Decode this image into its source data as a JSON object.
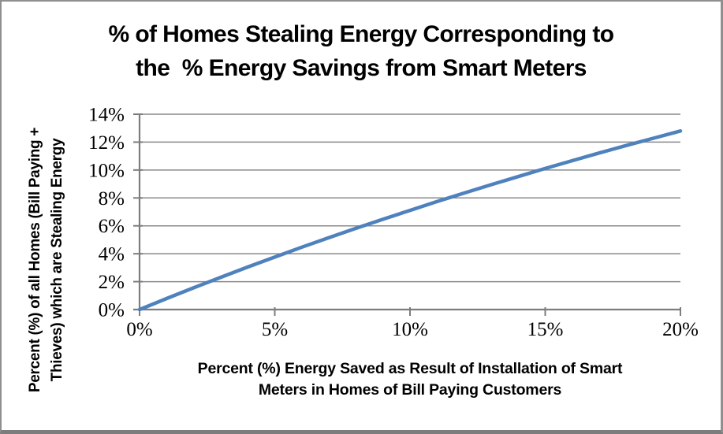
{
  "chart_data": {
    "type": "line",
    "title_line1": "% of Homes Stealing Energy Corresponding to",
    "title_line2": "the  % Energy Savings from Smart Meters",
    "xlabel_line1": "Percent (%) Energy Saved as Result of Installation of Smart",
    "xlabel_line2": "Meters in Homes of Bill Paying Customers",
    "ylabel_line1": "Percent (%) of all Homes (Bill Paying +",
    "ylabel_line2": "Thieves) which are Stealing Energy",
    "x": [
      0,
      1,
      2,
      3,
      4,
      5,
      6,
      7,
      8,
      9,
      10,
      11,
      12,
      13,
      14,
      15,
      16,
      17,
      18,
      19,
      20
    ],
    "y": [
      0,
      0.79,
      1.56,
      2.31,
      3.05,
      3.76,
      4.47,
      5.15,
      5.82,
      6.47,
      7.11,
      7.74,
      8.35,
      8.95,
      9.53,
      10.11,
      10.67,
      11.22,
      11.76,
      12.28,
      12.8
    ],
    "xlim": [
      0,
      20
    ],
    "ylim": [
      0,
      14
    ],
    "xticks": [
      0,
      5,
      10,
      15,
      20
    ],
    "xtick_labels": [
      "0%",
      "5%",
      "10%",
      "15%",
      "20%"
    ],
    "yticks": [
      0,
      2,
      4,
      6,
      8,
      10,
      12,
      14
    ],
    "ytick_labels": [
      "0%",
      "2%",
      "4%",
      "6%",
      "8%",
      "10%",
      "12%",
      "14%"
    ],
    "grid": true,
    "legend": "none",
    "line_color": "#4F81BD",
    "gridline_color": "#8a8a8a",
    "axis_color": "#7d7d7d",
    "tick_color": "#7d7d7d",
    "text_color": "#000000",
    "background_color": "#ffffff"
  }
}
